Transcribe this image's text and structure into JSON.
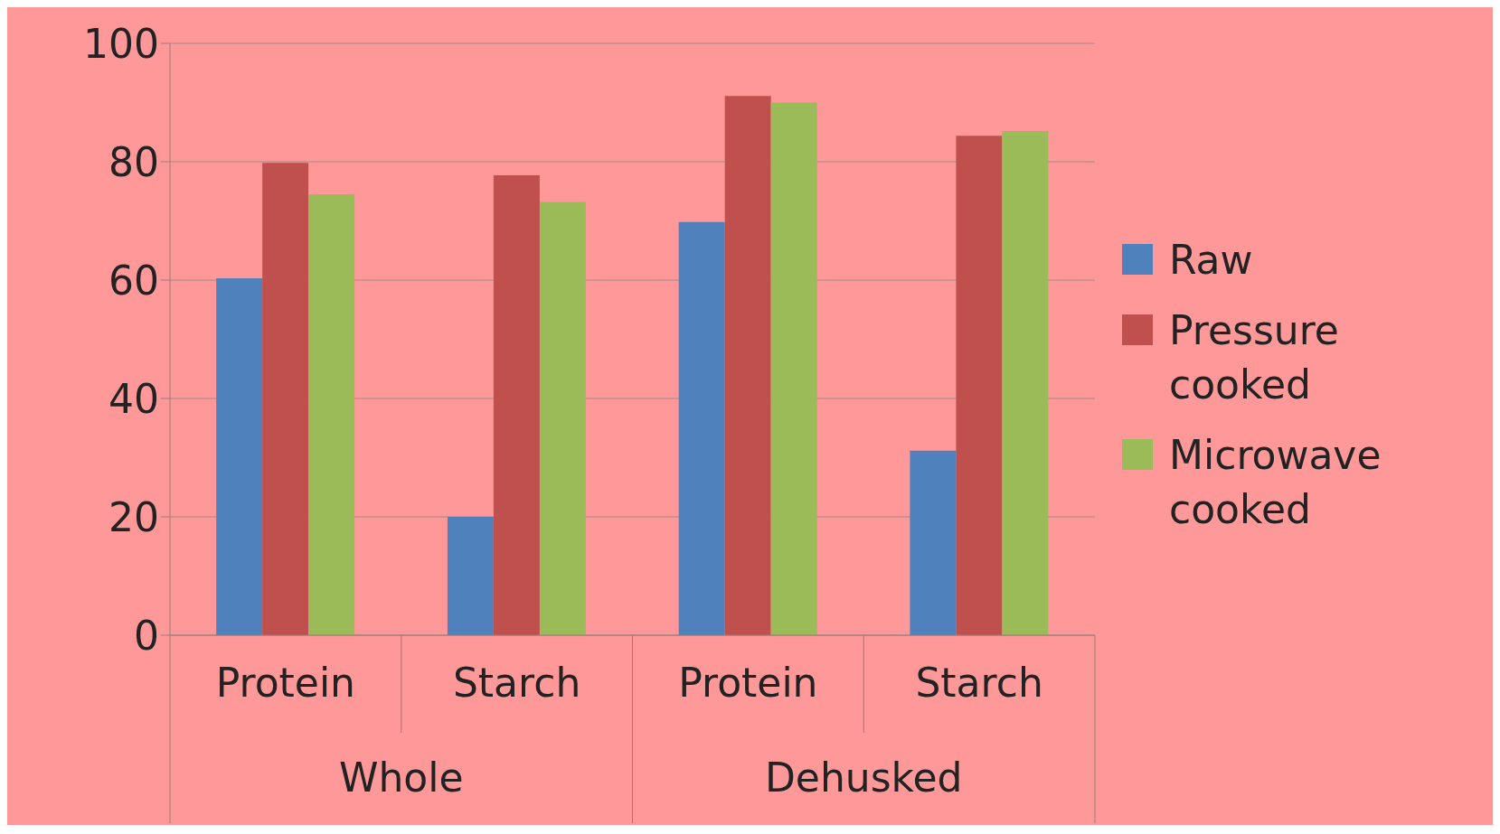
{
  "chart_data": {
    "type": "bar",
    "categories": [
      "Protein",
      "Starch",
      "Protein",
      "Starch"
    ],
    "series": [
      {
        "name": "Raw",
        "color": "#4f81bd",
        "values": [
          60.3,
          20,
          69.8,
          31.2
        ]
      },
      {
        "name": "Pressure cooked",
        "color": "#c0504d",
        "values": [
          79.8,
          77.7,
          91.1,
          84.4
        ]
      },
      {
        "name": "Microwave cooked",
        "color": "#9bbb59",
        "values": [
          74.5,
          73.2,
          90,
          85.2
        ]
      }
    ],
    "annotations": [
      "Whole",
      "Dehusked"
    ],
    "ylim": [
      0,
      100
    ],
    "yticks": [
      0,
      20,
      40,
      60,
      80,
      100
    ],
    "grid": "y",
    "legend": "right"
  }
}
